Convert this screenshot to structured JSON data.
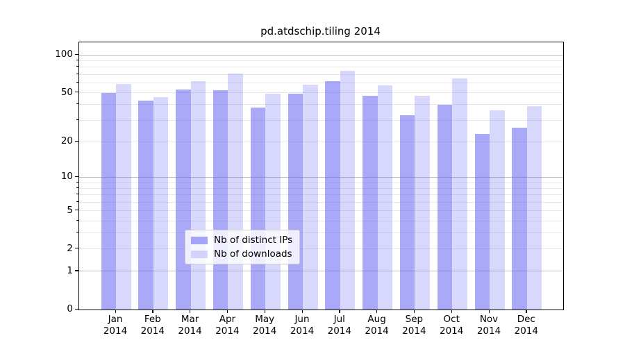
{
  "chart_data": {
    "type": "bar",
    "title": "pd.atdschip.tiling 2014",
    "categories": [
      "Jan",
      "Feb",
      "Mar",
      "Apr",
      "May",
      "Jun",
      "Jul",
      "Aug",
      "Sep",
      "Oct",
      "Nov",
      "Dec"
    ],
    "category_year": "2014",
    "series": [
      {
        "name": "Nb of distinct IPs",
        "color": "rgba(99,99,243,0.55)",
        "values": [
          50,
          43,
          53,
          52,
          38,
          49,
          62,
          47,
          33,
          40,
          23,
          26
        ]
      },
      {
        "name": "Nb of downloads",
        "color": "rgba(99,99,243,0.25)",
        "values": [
          59,
          46,
          62,
          71,
          49,
          58,
          75,
          57,
          47,
          65,
          36,
          39
        ]
      }
    ],
    "xlabel": "",
    "ylabel": "",
    "y_scale": "log10(value+1)",
    "ylim": [
      0,
      126
    ],
    "y_tick_values": [
      0,
      1,
      2,
      5,
      10,
      20,
      50,
      100
    ],
    "y_major_grid_values": [
      1,
      10,
      100
    ],
    "y_minor_grid_values": [
      2,
      3,
      4,
      5,
      6,
      7,
      8,
      9,
      20,
      30,
      40,
      50,
      60,
      70,
      80,
      90
    ],
    "grid": "on",
    "legend_position": "lower center",
    "legend_entries": [
      "Nb of distinct IPs",
      "Nb of downloads"
    ]
  },
  "colors": {
    "bar_distinct_ips": "rgba(99,99,243,0.55)",
    "bar_downloads": "rgba(99,99,243,0.25)",
    "grid_major": "#bcbcbc",
    "grid_minor": "#e7e7e7",
    "spine": "#000000",
    "legend_border": "#cccccc",
    "background": "#ffffff",
    "text": "#000000"
  }
}
